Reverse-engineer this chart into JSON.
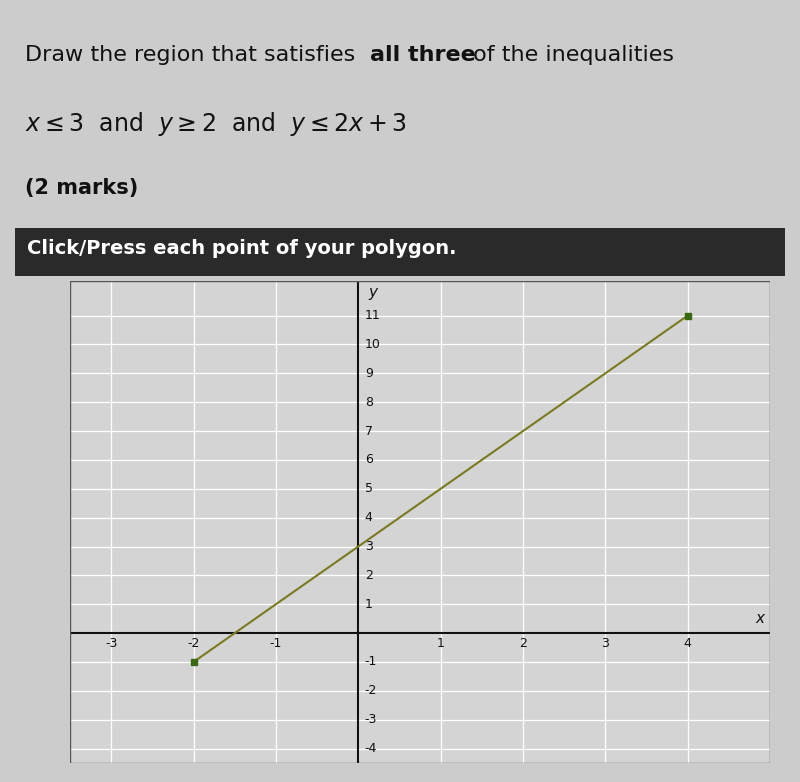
{
  "title_normal1": "Draw the region that satisfies ",
  "title_bold": "all three",
  "title_normal2": " of the inequalities",
  "marks_text": "(2 marks)",
  "header_text": "Click/Press each point of your polygon.",
  "header_bg": "#2a2a2a",
  "header_fg": "#ffffff",
  "xlim": [
    -3.5,
    5.0
  ],
  "ylim": [
    -4.5,
    12.2
  ],
  "xticks": [
    -3,
    -2,
    -1,
    1,
    2,
    3,
    4
  ],
  "yticks": [
    -4,
    -3,
    -2,
    -1,
    1,
    2,
    3,
    4,
    5,
    6,
    7,
    8,
    9,
    10,
    11
  ],
  "line_x": [
    -2,
    4
  ],
  "line_y": [
    -1,
    11
  ],
  "line_color": "#7a7a20",
  "dot_color": "#3a6a10",
  "dot_size": 25,
  "bg_color": "#cccccc",
  "plot_bg": "#d4d4d4",
  "grid_color": "#ffffff",
  "axis_color": "#111111",
  "text_color": "#111111",
  "border_color": "#555555"
}
